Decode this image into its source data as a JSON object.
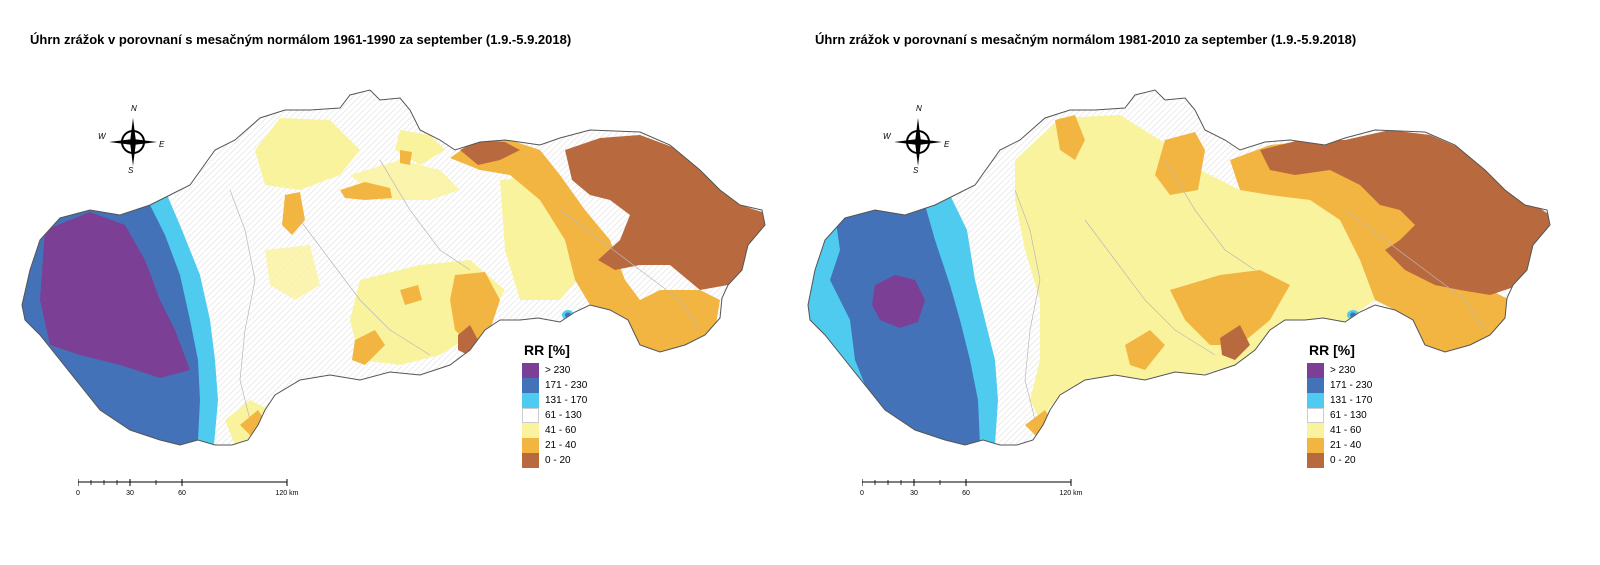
{
  "maps": [
    {
      "title": "Úhrn zrážok v porovnaní s mesačným normálom 1961-1990 za september (1.9.-5.9.2018)",
      "variant": "1961-1990"
    },
    {
      "title": "Úhrn zrážok v porovnaní s mesačným normálom 1981-2010 za september (1.9.-5.9.2018)",
      "variant": "1981-2010"
    }
  ],
  "compass": {
    "n": "N",
    "s": "S",
    "e": "E",
    "w": "W"
  },
  "legend": {
    "title": "RR [%]",
    "items": [
      {
        "label": "> 230",
        "color": "#7b3f96"
      },
      {
        "label": "171 - 230",
        "color": "#4472b8"
      },
      {
        "label": "131 - 170",
        "color": "#4fcbf0"
      },
      {
        "label": "61 - 130",
        "color": "#ffffff"
      },
      {
        "label": "41 - 60",
        "color": "#faf39e"
      },
      {
        "label": "21 - 40",
        "color": "#f3b542"
      },
      {
        "label": "0 - 20",
        "color": "#b9693e"
      }
    ]
  },
  "scalebar": {
    "labels": [
      "0",
      "30",
      "60",
      "120 km"
    ]
  }
}
